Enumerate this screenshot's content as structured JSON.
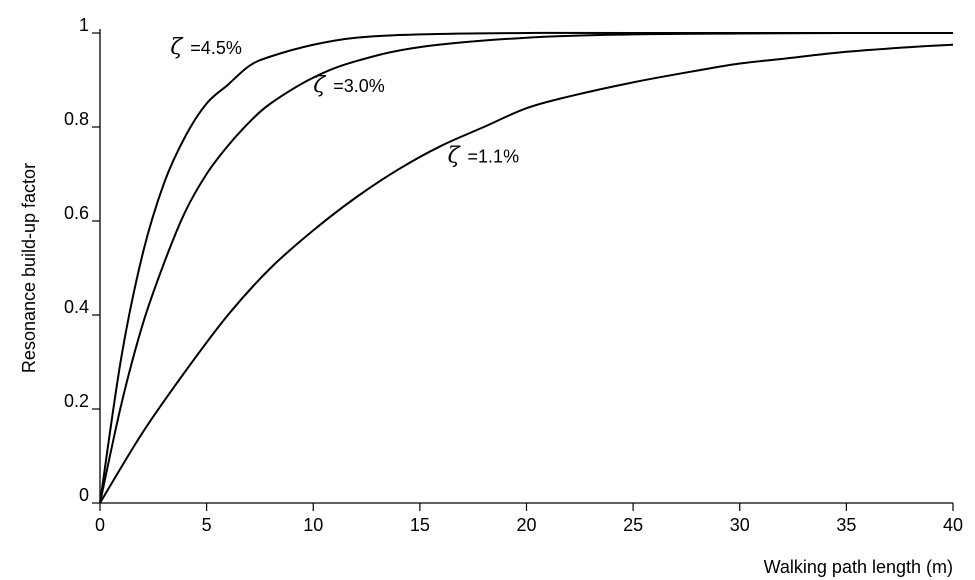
{
  "chart_data": {
    "type": "line",
    "title": "",
    "xlabel": "Walking path length (m)",
    "ylabel": "Resonance build-up factor",
    "xlim": [
      0,
      40
    ],
    "ylim": [
      0,
      1
    ],
    "xticks": [
      "0",
      "5",
      "10",
      "15",
      "20",
      "25",
      "30",
      "35",
      "40"
    ],
    "yticks": [
      "0",
      "0.2",
      "0.4",
      "0.6",
      "0.8",
      "1"
    ],
    "grid": false,
    "line_color": "#000000",
    "series": [
      {
        "annotation_symbol": "ζ",
        "annotation_value": "=4.5%",
        "x": [
          0,
          1,
          2,
          3,
          4,
          5,
          6,
          7,
          8,
          10,
          12,
          15,
          20,
          25,
          30,
          35,
          40
        ],
        "values": [
          0,
          0.31,
          0.53,
          0.68,
          0.78,
          0.85,
          0.89,
          0.93,
          0.95,
          0.975,
          0.99,
          0.997,
          1.0,
          1.0,
          1.0,
          1.0,
          1.0
        ]
      },
      {
        "annotation_symbol": "ζ",
        "annotation_value": "=3.0%",
        "x": [
          0,
          1,
          2,
          3,
          4,
          5,
          6,
          7,
          8,
          10,
          12,
          15,
          20,
          25,
          30,
          35,
          40
        ],
        "values": [
          0,
          0.21,
          0.38,
          0.51,
          0.62,
          0.7,
          0.76,
          0.81,
          0.85,
          0.905,
          0.94,
          0.97,
          0.99,
          0.997,
          0.999,
          1.0,
          1.0
        ]
      },
      {
        "annotation_symbol": "ζ",
        "annotation_value": "=1.1%",
        "x": [
          0,
          2,
          4,
          6,
          8,
          10,
          12,
          14,
          16,
          18,
          20,
          22,
          25,
          28,
          30,
          32,
          35,
          38,
          40
        ],
        "values": [
          0,
          0.15,
          0.28,
          0.4,
          0.5,
          0.58,
          0.65,
          0.71,
          0.76,
          0.8,
          0.84,
          0.865,
          0.895,
          0.92,
          0.935,
          0.945,
          0.96,
          0.97,
          0.975
        ]
      }
    ],
    "annotations": [
      {
        "series": 0,
        "at_x": 3.3,
        "at_y": 0.955
      },
      {
        "series": 1,
        "at_x": 10,
        "at_y": 0.875
      },
      {
        "series": 2,
        "at_x": 16.3,
        "at_y": 0.725
      }
    ]
  }
}
